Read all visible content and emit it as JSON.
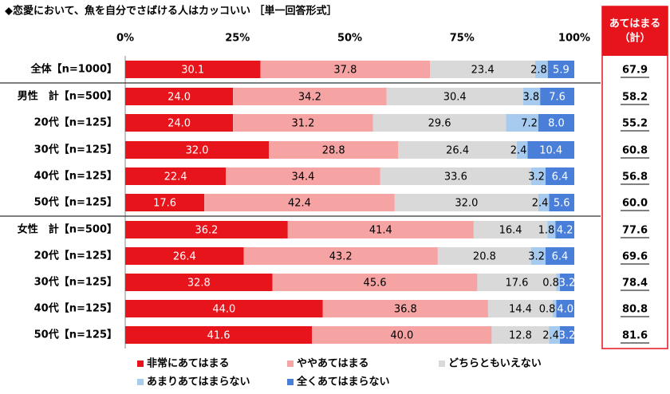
{
  "chart_data": {
    "type": "stacked_bar_100",
    "title": "◆恋愛において、魚を自分でさばける人はカッコいい ［単一回答形式］",
    "categories": [
      "全体【n=1000】",
      "男性　計【n=500】",
      "20代【n=125】",
      "30代【n=125】",
      "40代【n=125】",
      "50代【n=125】",
      "女性　計【n=500】",
      "20代【n=125】",
      "30代【n=125】",
      "40代【n=125】",
      "50代【n=125】"
    ],
    "xlim": [
      0,
      100
    ],
    "xticks": [
      {
        "value": 0,
        "label": "0%"
      },
      {
        "value": 25,
        "label": "25%"
      },
      {
        "value": 50,
        "label": "50%"
      },
      {
        "value": 75,
        "label": "75%"
      },
      {
        "value": 100,
        "label": "100%"
      }
    ],
    "series": [
      {
        "name": "非常にあてはまる",
        "color": "#e8141c",
        "values": [
          30.1,
          24.0,
          24.0,
          32.0,
          22.4,
          17.6,
          36.2,
          26.4,
          32.8,
          44.0,
          41.6
        ],
        "value_labels": [
          "30.1",
          "24.0",
          "24.0",
          "32.0",
          "22.4",
          "17.6",
          "36.2",
          "26.4",
          "32.8",
          "44.0",
          "41.6"
        ]
      },
      {
        "name": "ややあてはまる",
        "color": "#f5a3a3",
        "values": [
          37.8,
          34.2,
          31.2,
          28.8,
          34.4,
          42.4,
          41.4,
          43.2,
          45.6,
          36.8,
          40.0
        ],
        "value_labels": [
          "37.8",
          "34.2",
          "31.2",
          "28.8",
          "34.4",
          "42.4",
          "41.4",
          "43.2",
          "45.6",
          "36.8",
          "40.0"
        ]
      },
      {
        "name": "どちらともいえない",
        "color": "#d9d9d9",
        "values": [
          23.4,
          30.4,
          29.6,
          26.4,
          33.6,
          32.0,
          16.4,
          20.8,
          17.6,
          14.4,
          12.8
        ],
        "value_labels": [
          "23.4",
          "30.4",
          "29.6",
          "26.4",
          "33.6",
          "32.0",
          "16.4",
          "20.8",
          "17.6",
          "14.4",
          "12.8"
        ]
      },
      {
        "name": "あまりあてはまらない",
        "color": "#a6cbef",
        "values": [
          2.8,
          3.8,
          7.2,
          2.4,
          3.2,
          2.4,
          1.8,
          3.2,
          0.8,
          0.8,
          2.4
        ],
        "value_labels": [
          "2.8",
          "3.8",
          "7.2",
          "2.4",
          "3.2",
          "2.4",
          "1.8",
          "3.2",
          "0.8",
          "0.8",
          "2.4"
        ]
      },
      {
        "name": "全くあてはまらない",
        "color": "#4a7fd9",
        "values": [
          5.9,
          7.6,
          8.0,
          10.4,
          6.4,
          5.6,
          4.2,
          6.4,
          3.2,
          4.0,
          3.2
        ],
        "value_labels": [
          "5.9",
          "7.6",
          "8.0",
          "10.4",
          "6.4",
          "5.6",
          "4.2",
          "6.4",
          "3.2",
          "4.0",
          "3.2"
        ]
      }
    ],
    "totals": {
      "header": [
        "あてはまる",
        "（計）"
      ],
      "color": "#e8141c",
      "values": [
        67.9,
        58.2,
        55.2,
        60.8,
        56.8,
        60.0,
        77.6,
        69.6,
        78.4,
        80.8,
        81.6
      ],
      "value_labels": [
        "67.9",
        "58.2",
        "55.2",
        "60.8",
        "56.8",
        "60.0",
        "77.6",
        "69.6",
        "78.4",
        "80.8",
        "81.6"
      ]
    }
  }
}
